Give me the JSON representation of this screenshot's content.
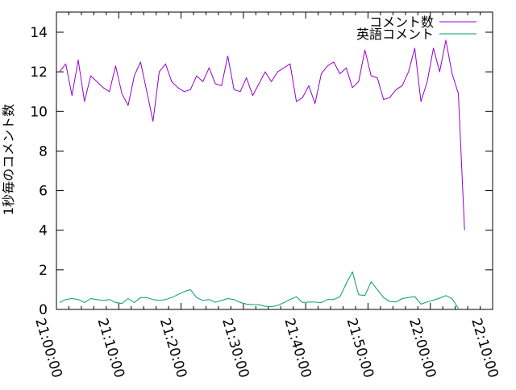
{
  "chart_data": {
    "type": "line",
    "title": "",
    "xlabel": "",
    "ylabel": "1秒毎のコメント数",
    "background_color": "#ffffff",
    "axis_color": "#000000",
    "grid": false,
    "legend_position": "top-right-inside",
    "x_axis": {
      "kind": "time",
      "range_minutes": [
        0,
        70
      ],
      "major_tick_interval_min": 10,
      "minor_tick_interval_min": 2,
      "tick_labels": [
        "21:00:00",
        "21:10:00",
        "21:20:00",
        "21:30:00",
        "21:40:00",
        "21:50:00",
        "22:00:00",
        "22:10:00"
      ],
      "tick_label_rotation_deg": 73
    },
    "y_axis": {
      "ticks": [
        0,
        2,
        4,
        6,
        8,
        10,
        12,
        14
      ],
      "range": [
        0,
        15
      ]
    },
    "series": [
      {
        "name": "コメント数",
        "color": "#9400d3",
        "t_start_min": 0.5,
        "t_step_min": 1,
        "values": [
          12.0,
          12.4,
          10.8,
          12.6,
          10.5,
          11.8,
          11.5,
          11.2,
          11.0,
          12.3,
          10.9,
          10.3,
          11.8,
          12.5,
          11.0,
          9.5,
          12.0,
          12.4,
          11.5,
          11.2,
          11.0,
          11.1,
          11.8,
          11.5,
          12.2,
          11.4,
          11.3,
          12.8,
          11.1,
          11.0,
          11.7,
          10.8,
          11.4,
          12.0,
          11.5,
          12.0,
          12.2,
          12.4,
          10.5,
          10.7,
          11.3,
          10.4,
          11.9,
          12.3,
          12.5,
          11.9,
          12.2,
          11.2,
          11.5,
          13.1,
          11.8,
          11.7,
          10.6,
          10.7,
          11.1,
          11.3,
          12.0,
          13.2,
          10.5,
          11.5,
          13.2,
          12.0,
          13.6,
          11.9,
          10.9,
          4.0
        ]
      },
      {
        "name": "英語コメント",
        "color": "#009e73",
        "t_start_min": 0.5,
        "t_step_min": 1,
        "values": [
          0.35,
          0.5,
          0.55,
          0.5,
          0.35,
          0.55,
          0.5,
          0.45,
          0.5,
          0.35,
          0.3,
          0.55,
          0.35,
          0.6,
          0.6,
          0.5,
          0.45,
          0.5,
          0.6,
          0.75,
          0.9,
          1.0,
          0.6,
          0.45,
          0.5,
          0.36,
          0.45,
          0.55,
          0.5,
          0.35,
          0.27,
          0.24,
          0.24,
          0.16,
          0.14,
          0.2,
          0.34,
          0.5,
          0.64,
          0.35,
          0.37,
          0.37,
          0.34,
          0.5,
          0.5,
          0.64,
          1.3,
          1.9,
          0.74,
          0.7,
          1.4,
          1.0,
          0.6,
          0.4,
          0.38,
          0.55,
          0.6,
          0.65,
          0.27,
          0.38,
          0.47,
          0.57,
          0.7,
          0.54,
          0.05
        ]
      }
    ]
  }
}
